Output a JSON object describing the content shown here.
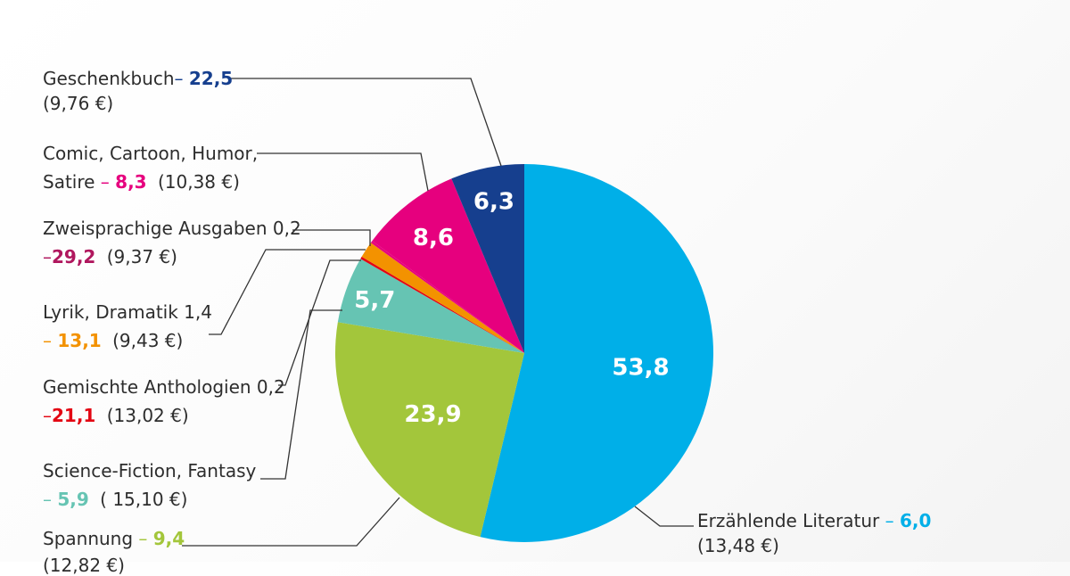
{
  "chart_data": {
    "type": "pie",
    "slices": [
      {
        "name": "Erzählende Literatur",
        "value": 53.8,
        "value_label": "53,8",
        "change": "6,0",
        "price": "(13,48 €)",
        "color": "#00afe8"
      },
      {
        "name": "Spannung",
        "value": 23.9,
        "value_label": "23,9",
        "change": "9,4",
        "price": "(12,82 €)",
        "color": "#a3c63b"
      },
      {
        "name": "Science-Fiction, Fantasy",
        "value": 5.7,
        "value_label": "5,7",
        "change": "5,9",
        "price": "( 15,10 €)",
        "color": "#66c4b3"
      },
      {
        "name": "Gemischte Anthologien",
        "value": 0.2,
        "value_label": "0,2",
        "change": "21,1",
        "price": "(13,02 €)",
        "color": "#e30613"
      },
      {
        "name": "Lyrik, Dramatik",
        "value": 1.4,
        "value_label": "1,4",
        "change": "13,1",
        "price": "(9,43 €)",
        "color": "#f39200"
      },
      {
        "name": "Zweisprachige Ausgaben",
        "value": 0.2,
        "value_label": "0,2",
        "change": "29,2",
        "price": "(9,37 €)",
        "color": "#e6007e"
      },
      {
        "name": "Comic, Cartoon, Humor, Satire",
        "value": 8.6,
        "value_label": "8,6",
        "change": "8,3",
        "price": "(10,38 €)",
        "color": "#e6007e"
      },
      {
        "name": "Geschenkbuch",
        "value": 6.3,
        "value_label": "6,3",
        "change": "22,5",
        "price": "(9,76 €)",
        "color": "#163f8e"
      }
    ],
    "label_colors": {
      "erzaehlende": "#00afe8",
      "spannung": "#a3c63b",
      "scifi": "#66c4b3",
      "anthologien": "#e30613",
      "lyrik": "#f39200",
      "zweisprachige": "#b0175e",
      "comic": "#e6007e",
      "geschenkbuch": "#163f8e"
    }
  },
  "labels": {
    "geschenkbuch": {
      "name": "Geschenkbuch",
      "dash": "– ",
      "change": "22,5",
      "price": "(9,76 €)"
    },
    "comic": {
      "line1": "Comic, Cartoon, Humor,",
      "line2": "Satire ",
      "dash": "– ",
      "change": "8,3",
      "price": "(10,38 €)"
    },
    "zweisprachige": {
      "line1": "Zweisprachige Ausgaben 0,2",
      "dash": "–",
      "change": "29,2",
      "price": "(9,37 €)"
    },
    "lyrik": {
      "line1": "Lyrik, Dramatik 1,4",
      "dash": "– ",
      "change": "13,1",
      "price": "(9,43 €)"
    },
    "anthologien": {
      "line1": "Gemischte Anthologien 0,2",
      "dash": "–",
      "change": "21,1",
      "price": "(13,02 €)"
    },
    "scifi": {
      "line1": "Science-Fiction, Fantasy",
      "dash": "– ",
      "change": "5,9",
      "price": "( 15,10 €)"
    },
    "spannung": {
      "name": "Spannung ",
      "dash": "– ",
      "change": "9,4",
      "price": "(12,82 €)"
    },
    "erzaehlende": {
      "name": "Erzählende Literatur ",
      "dash": "– ",
      "change": "6,0",
      "price": "(13,48 €)"
    }
  }
}
